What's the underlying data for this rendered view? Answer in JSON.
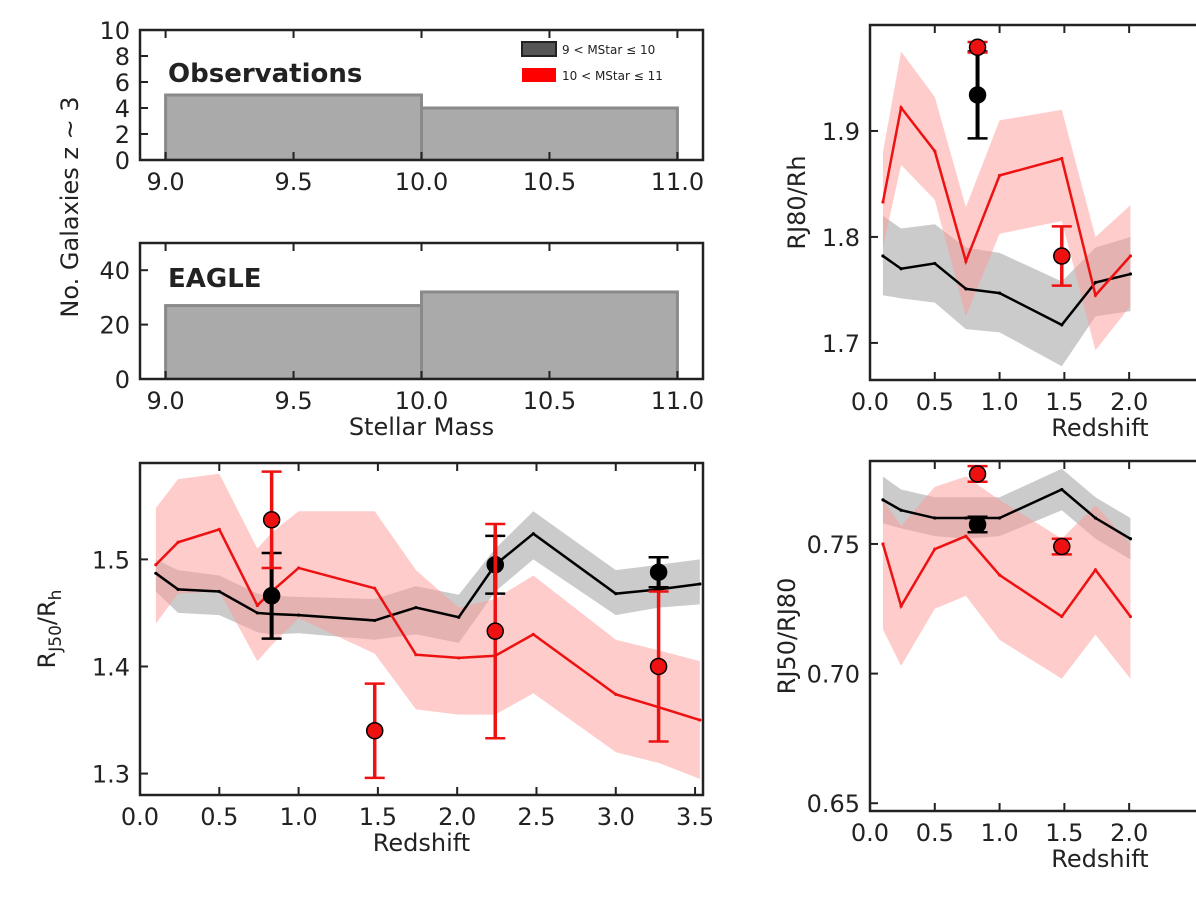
{
  "figure": {
    "shared_ylabel": "No. Galaxies  z ~ 3",
    "legend": {
      "entries": [
        {
          "label": "9 < MStar ≤ 10",
          "color": "#555555"
        },
        {
          "label": "10 < MStar ≤ 11",
          "color": "#ff0000"
        }
      ]
    }
  },
  "colors": {
    "low_mass": "#000000",
    "high_mass": "#ee1111",
    "low_band": "#a0a0a0",
    "high_band": "#ff9a9a",
    "hist": "#aaaaaa",
    "hist_edge": "#8a8a8a"
  },
  "chart_data": [
    {
      "id": "hist_obs",
      "type": "bar",
      "title": "Observations",
      "xlabel": "",
      "ylabel": "",
      "bins": [
        [
          9.0,
          10.0
        ],
        [
          10.0,
          11.0
        ]
      ],
      "values": [
        5,
        4
      ],
      "xlim": [
        8.9,
        11.1
      ],
      "ylim": [
        0,
        10
      ],
      "xticks": [
        "9.0",
        "9.5",
        "10.0",
        "10.5",
        "11.0"
      ],
      "yticks": [
        "0",
        "2",
        "4",
        "6",
        "8",
        "10"
      ]
    },
    {
      "id": "hist_eagle",
      "type": "bar",
      "title": "EAGLE",
      "xlabel": "Stellar Mass",
      "ylabel": "",
      "bins": [
        [
          9.0,
          10.0
        ],
        [
          10.0,
          11.0
        ]
      ],
      "values": [
        27,
        32
      ],
      "xlim": [
        8.9,
        11.1
      ],
      "ylim": [
        0,
        50
      ],
      "xticks": [
        "9.0",
        "9.5",
        "10.0",
        "10.5",
        "11.0"
      ],
      "yticks": [
        "0",
        "20",
        "40"
      ]
    },
    {
      "id": "rj50_rh",
      "type": "line",
      "title": "",
      "xlabel": "Redshift",
      "ylabel": "R",
      "ylabel_sub": "J50",
      "ylabel_mid": "/R",
      "ylabel_sub2": "h",
      "xlim": [
        0.0,
        3.55
      ],
      "ylim": [
        1.28,
        1.59
      ],
      "xticks": [
        "0.0",
        "0.5",
        "1.0",
        "1.5",
        "2.0",
        "2.5",
        "3.0",
        "3.5"
      ],
      "yticks": [
        "1.3",
        "1.4",
        "1.5"
      ],
      "x": [
        0.1,
        0.24,
        0.5,
        0.74,
        0.83,
        1.0,
        1.48,
        1.74,
        2.01,
        2.24,
        2.48,
        3.0,
        3.27,
        3.53
      ],
      "series": [
        {
          "name": "9 < MStar ≤ 10",
          "values": [
            1.487,
            1.472,
            1.47,
            1.45,
            1.449,
            1.448,
            1.443,
            1.455,
            1.446,
            1.495,
            1.524,
            1.468,
            1.472,
            1.477
          ],
          "band_low": [
            1.47,
            1.45,
            1.448,
            1.432,
            1.43,
            1.431,
            1.425,
            1.43,
            1.422,
            1.47,
            1.5,
            1.448,
            1.455,
            1.458
          ],
          "band_high": [
            1.5,
            1.49,
            1.485,
            1.468,
            1.466,
            1.465,
            1.463,
            1.475,
            1.467,
            1.51,
            1.545,
            1.49,
            1.495,
            1.5
          ],
          "obs_x": [
            0.83,
            2.24,
            3.27
          ],
          "obs_y": [
            1.466,
            1.495,
            1.488
          ],
          "obs_err": [
            0.04,
            0.027,
            0.014
          ]
        },
        {
          "name": "10 < MStar ≤ 11",
          "values": [
            1.495,
            1.516,
            1.528,
            1.457,
            1.47,
            1.492,
            1.473,
            1.411,
            1.408,
            1.41,
            1.43,
            1.374,
            1.362,
            1.35
          ],
          "band_low": [
            1.44,
            1.468,
            1.47,
            1.405,
            1.42,
            1.445,
            1.412,
            1.36,
            1.355,
            1.355,
            1.375,
            1.32,
            1.31,
            1.295
          ],
          "band_high": [
            1.548,
            1.575,
            1.58,
            1.51,
            1.525,
            1.545,
            1.545,
            1.49,
            1.455,
            1.463,
            1.485,
            1.425,
            1.415,
            1.405
          ],
          "obs_x": [
            0.83,
            1.48,
            2.24,
            3.27
          ],
          "obs_y": [
            1.537,
            1.34,
            1.433,
            1.4
          ],
          "obs_err": [
            0.045,
            0.044,
            0.1,
            0.07
          ]
        }
      ]
    },
    {
      "id": "rj80_rh",
      "type": "line",
      "title": "",
      "xlabel": "Redshift",
      "ylabel": "RJ80/Rh",
      "xlim": [
        0.0,
        3.55
      ],
      "ylim": [
        1.665,
        2.0
      ],
      "xticks": [
        "0.0",
        "0.5",
        "1.0",
        "1.5",
        "2.0"
      ],
      "yticks": [
        "1.7",
        "1.8",
        "1.9"
      ],
      "x": [
        0.1,
        0.24,
        0.5,
        0.74,
        1.0,
        1.48,
        1.74,
        2.01
      ],
      "series": [
        {
          "name": "9 < MStar ≤ 10",
          "values": [
            1.782,
            1.77,
            1.775,
            1.751,
            1.747,
            1.717,
            1.757,
            1.765
          ],
          "band_low": [
            1.745,
            1.742,
            1.738,
            1.713,
            1.71,
            1.678,
            1.725,
            1.73
          ],
          "band_high": [
            1.82,
            1.808,
            1.812,
            1.79,
            1.785,
            1.758,
            1.79,
            1.8
          ],
          "obs_x": [
            0.83
          ],
          "obs_y": [
            1.934
          ],
          "obs_err": [
            0.041
          ]
        },
        {
          "name": "10 < MStar ≤ 11",
          "values": [
            1.833,
            1.922,
            1.881,
            1.777,
            1.858,
            1.874,
            1.745,
            1.782
          ],
          "band_low": [
            1.79,
            1.868,
            1.835,
            1.725,
            1.803,
            1.815,
            1.693,
            1.735
          ],
          "band_high": [
            1.88,
            1.975,
            1.932,
            1.828,
            1.91,
            1.92,
            1.8,
            1.83
          ],
          "obs_x": [
            0.83,
            1.48
          ],
          "obs_y": [
            1.979,
            1.782
          ],
          "obs_err": [
            0.005,
            0.028
          ]
        }
      ]
    },
    {
      "id": "rj50_rj80",
      "type": "line",
      "title": "",
      "xlabel": "Redshift",
      "ylabel": "RJ50/RJ80",
      "xlim": [
        0.0,
        3.55
      ],
      "ylim": [
        0.647,
        0.782
      ],
      "xticks": [
        "0.0",
        "0.5",
        "1.0",
        "1.5",
        "2.0"
      ],
      "yticks": [
        "0.65",
        "0.70",
        "0.75"
      ],
      "x": [
        0.1,
        0.24,
        0.5,
        0.74,
        1.0,
        1.48,
        1.74,
        2.01
      ],
      "series": [
        {
          "name": "9 < MStar ≤ 10",
          "values": [
            0.767,
            0.763,
            0.76,
            0.76,
            0.76,
            0.771,
            0.76,
            0.752
          ],
          "band_low": [
            0.758,
            0.756,
            0.753,
            0.752,
            0.753,
            0.763,
            0.752,
            0.744
          ],
          "band_high": [
            0.776,
            0.771,
            0.768,
            0.768,
            0.768,
            0.779,
            0.768,
            0.76
          ],
          "obs_x": [
            0.83
          ],
          "obs_y": [
            0.7575
          ],
          "obs_err": [
            0.003
          ]
        },
        {
          "name": "10 < MStar ≤ 11",
          "values": [
            0.75,
            0.726,
            0.748,
            0.753,
            0.738,
            0.722,
            0.74,
            0.722
          ],
          "band_low": [
            0.717,
            0.703,
            0.725,
            0.73,
            0.713,
            0.698,
            0.715,
            0.698
          ],
          "band_high": [
            0.767,
            0.757,
            0.772,
            0.776,
            0.767,
            0.752,
            0.765,
            0.75
          ],
          "obs_x": [
            0.83,
            1.48
          ],
          "obs_y": [
            0.777,
            0.749
          ],
          "obs_err": [
            0.003,
            0.003
          ]
        }
      ]
    }
  ]
}
